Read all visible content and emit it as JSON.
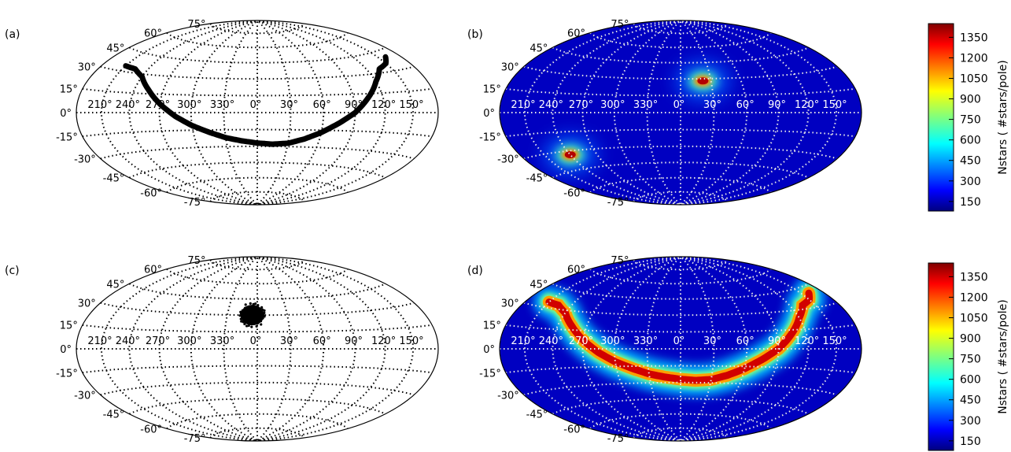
{
  "chart_data": [
    {
      "type": "scatter",
      "panel_label": "(a)",
      "projection": "Aitoff/Hammer",
      "lat_tick_labels": [
        "75°",
        "60°",
        "45°",
        "30°",
        "15°",
        "0°",
        "-15°",
        "-30°",
        "-45°",
        "-60°",
        "-75°"
      ],
      "lon_tick_labels": [
        "210°",
        "240°",
        "270°",
        "300°",
        "330°",
        "0°",
        "30°",
        "60°",
        "90°",
        "120°",
        "150°"
      ],
      "description_values": {
        "curve_lon": [
          -150,
          -135,
          -120,
          -105,
          -90,
          -75,
          -60,
          -45,
          -30,
          -15,
          0,
          15,
          30,
          45,
          60,
          75,
          90,
          105,
          120,
          135,
          150,
          160
        ],
        "curve_lat": [
          34,
          33,
          28,
          18,
          7,
          -3,
          -11,
          -17,
          -22,
          -25,
          -27,
          -28,
          -27,
          -23,
          -17,
          -9,
          0,
          12,
          24,
          33,
          36,
          40
        ]
      },
      "marker_color": "#000000"
    },
    {
      "type": "heatmap",
      "panel_label": "(b)",
      "projection": "Aitoff/Hammer",
      "lat_tick_labels": [
        "75°",
        "60°",
        "45°",
        "30°",
        "15°",
        "0°",
        "-15°",
        "-30°",
        "-45°",
        "-60°",
        "-75°"
      ],
      "lon_tick_labels": [
        "210°",
        "240°",
        "270°",
        "300°",
        "330°",
        "0°",
        "30°",
        "60°",
        "90°",
        "120°",
        "150°"
      ],
      "hotspots": [
        {
          "lon": 22,
          "lat": 28,
          "peak": 1400
        },
        {
          "lon": -120,
          "lat": -33,
          "peak": 1400
        }
      ],
      "background_level": 80,
      "colorbar": {
        "label": "Nstars ( #stars/pole)",
        "ticks": [
          150,
          300,
          450,
          600,
          750,
          900,
          1050,
          1200,
          1350
        ],
        "range": [
          80,
          1450
        ]
      }
    },
    {
      "type": "scatter",
      "panel_label": "(c)",
      "projection": "Aitoff/Hammer",
      "lat_tick_labels": [
        "75°",
        "60°",
        "45°",
        "30°",
        "15°",
        "0°",
        "-15°",
        "-30°",
        "-45°",
        "-60°",
        "-75°"
      ],
      "lon_tick_labels": [
        "210°",
        "240°",
        "270°",
        "300°",
        "330°",
        "0°",
        "30°",
        "60°",
        "90°",
        "120°",
        "150°"
      ],
      "cluster": {
        "lon": -5,
        "lat": 30,
        "radius_deg": 6
      },
      "marker_color": "#000000"
    },
    {
      "type": "heatmap",
      "panel_label": "(d)",
      "projection": "Aitoff/Hammer",
      "lat_tick_labels": [
        "75°",
        "60°",
        "45°",
        "30°",
        "15°",
        "0°",
        "-15°",
        "-30°",
        "-45°",
        "-60°",
        "-75°"
      ],
      "lon_tick_labels": [
        "210°",
        "240°",
        "270°",
        "300°",
        "330°",
        "0°",
        "30°",
        "60°",
        "90°",
        "120°",
        "150°"
      ],
      "band": {
        "follows_curve_of_panel": "(a)",
        "peak": 1400,
        "width_deg": 7
      },
      "background_level": 80,
      "colorbar": {
        "label": "Nstars ( #stars/pole)",
        "ticks": [
          150,
          300,
          450,
          600,
          750,
          900,
          1050,
          1200,
          1350
        ],
        "range": [
          80,
          1450
        ]
      }
    }
  ]
}
